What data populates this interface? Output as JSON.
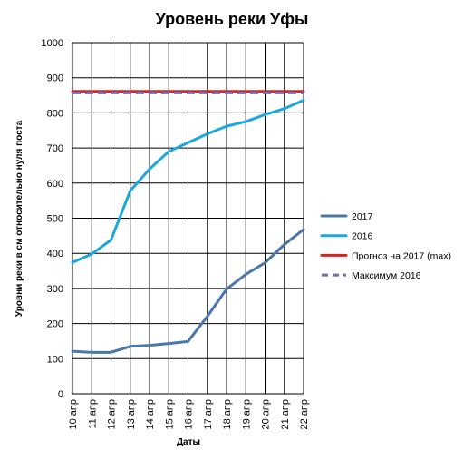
{
  "chart_data": {
    "type": "line",
    "title": "Уровень реки Уфы",
    "xlabel": "Даты",
    "ylabel": "Уровни реки в см относительно нуля поста",
    "ylim": [
      0,
      1000
    ],
    "yticks": [
      0,
      100,
      200,
      300,
      400,
      500,
      600,
      700,
      800,
      900,
      1000
    ],
    "categories": [
      "10 апр",
      "11 апр",
      "12 апр",
      "13 апр",
      "14 апр",
      "15 апр",
      "16 апр",
      "17 апр",
      "18 апр",
      "19 апр",
      "20 апр",
      "21 апр",
      "22 апр"
    ],
    "grid": "horizontal and vertical",
    "legend_position": "right",
    "series": [
      {
        "name": "2017",
        "color": "#4a77a8",
        "style": "solid",
        "values": [
          121,
          118,
          118,
          135,
          138,
          143,
          149,
          220,
          298,
          340,
          373,
          425,
          468
        ]
      },
      {
        "name": "2016",
        "color": "#1ca8d8",
        "style": "solid",
        "values": [
          374,
          398,
          438,
          578,
          640,
          690,
          715,
          740,
          762,
          775,
          795,
          812,
          836
        ]
      },
      {
        "name": "Прогноз на 2017 (max)",
        "color": "#d62424",
        "style": "solid",
        "values": [
          861,
          861,
          861,
          861,
          861,
          861,
          861,
          861,
          861,
          861,
          861,
          861,
          861
        ]
      },
      {
        "name": "Максимум 2016",
        "color": "#7a6aa8",
        "style": "dashed",
        "values": [
          857,
          857,
          857,
          857,
          857,
          857,
          857,
          857,
          857,
          857,
          857,
          857,
          857
        ]
      }
    ]
  }
}
